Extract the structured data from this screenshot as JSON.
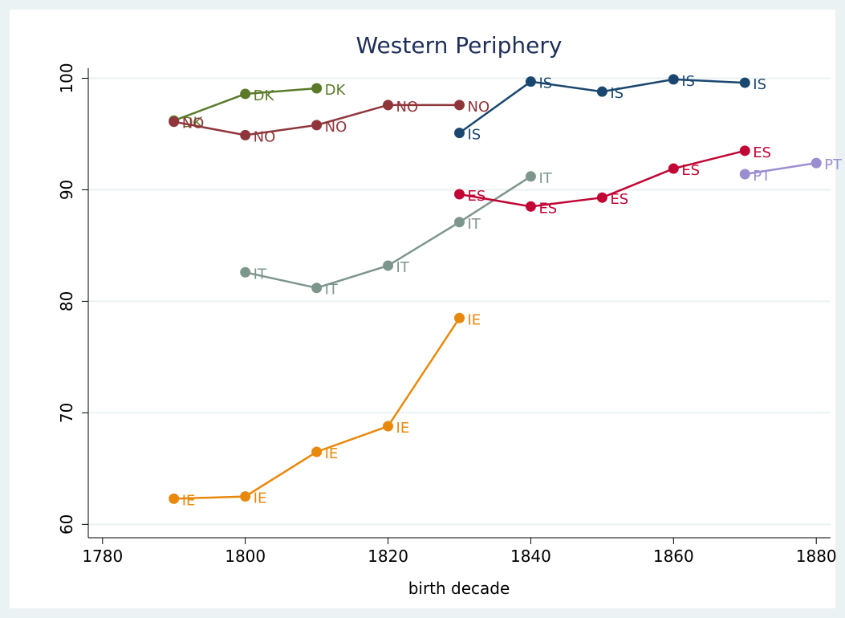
{
  "chart_data": {
    "type": "line",
    "title": "Western Periphery",
    "x_label": "birth decade",
    "x": [
      1790,
      1800,
      1810,
      1820,
      1830,
      1840,
      1850,
      1860,
      1870,
      1880
    ],
    "series": [
      {
        "name": "DK",
        "color": "#5a7a2a",
        "values": [
          96.2,
          98.6,
          99.1,
          null,
          null,
          null,
          null,
          null,
          null,
          null
        ]
      },
      {
        "name": "NO",
        "color": "#90353b",
        "values": [
          96.1,
          94.9,
          95.8,
          97.6,
          97.6,
          null,
          null,
          null,
          null,
          null
        ]
      },
      {
        "name": "IS",
        "color": "#1a476f",
        "values": [
          null,
          null,
          null,
          null,
          95.1,
          99.7,
          98.8,
          99.9,
          99.6,
          null
        ]
      },
      {
        "name": "IT",
        "color": "#7d968c",
        "values": [
          null,
          82.6,
          81.2,
          83.2,
          87.1,
          91.2,
          null,
          null,
          null,
          null
        ]
      },
      {
        "name": "ES",
        "color": "#c10534",
        "values": [
          null,
          null,
          null,
          null,
          89.6,
          88.5,
          89.3,
          91.9,
          93.5,
          null
        ]
      },
      {
        "name": "PT",
        "color": "#9c8dd1",
        "values": [
          null,
          null,
          null,
          null,
          null,
          null,
          null,
          null,
          91.4,
          92.4
        ]
      },
      {
        "name": "IE",
        "color": "#e8890c",
        "values": [
          62.3,
          62.5,
          66.5,
          68.8,
          78.5,
          null,
          null,
          null,
          null,
          null
        ]
      }
    ],
    "xlim": [
      1778,
      1882
    ],
    "xticks": [
      1780,
      1800,
      1820,
      1840,
      1860,
      1880
    ],
    "ylim": [
      58.8,
      100.9
    ],
    "yticks": [
      60,
      70,
      80,
      90,
      100
    ],
    "grid": true
  }
}
